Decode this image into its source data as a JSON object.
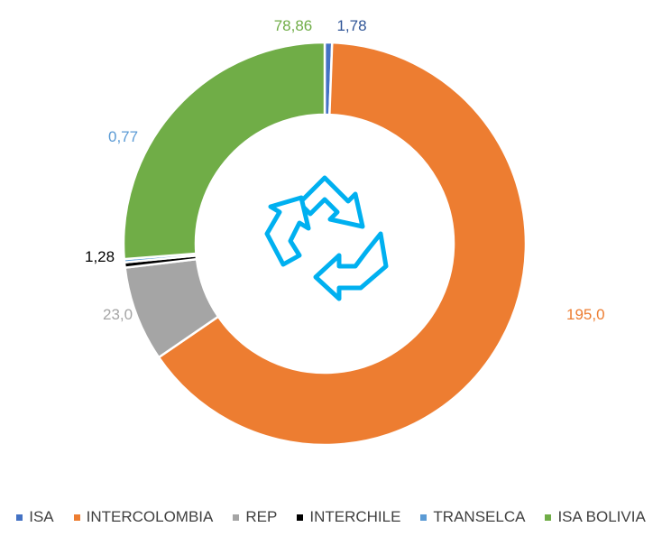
{
  "chart_data": {
    "type": "pie",
    "variant": "doughnut",
    "title": "",
    "categories": [
      "ISA",
      "INTERCOLOMBIA",
      "REP",
      "INTERCHILE",
      "TRANSELCA",
      "ISA BOLIVIA"
    ],
    "values": [
      1.78,
      195.0,
      23.0,
      1.28,
      0.77,
      78.86
    ],
    "data_labels": [
      "1,78",
      "195,0",
      "23,0",
      "1,28",
      "0,77",
      "78,86"
    ],
    "colors": [
      "#4472C4",
      "#ED7D31",
      "#A5A5A5",
      "#000000",
      "#5B9BD5",
      "#70AD47"
    ],
    "label_colors": [
      "#2F5597",
      "#ED7D31",
      "#A5A5A5",
      "#000000",
      "#5B9BD5",
      "#70AD47"
    ],
    "legend_position": "bottom",
    "center_icon": "recycle-icon",
    "center_icon_color": "#00B0F0"
  }
}
